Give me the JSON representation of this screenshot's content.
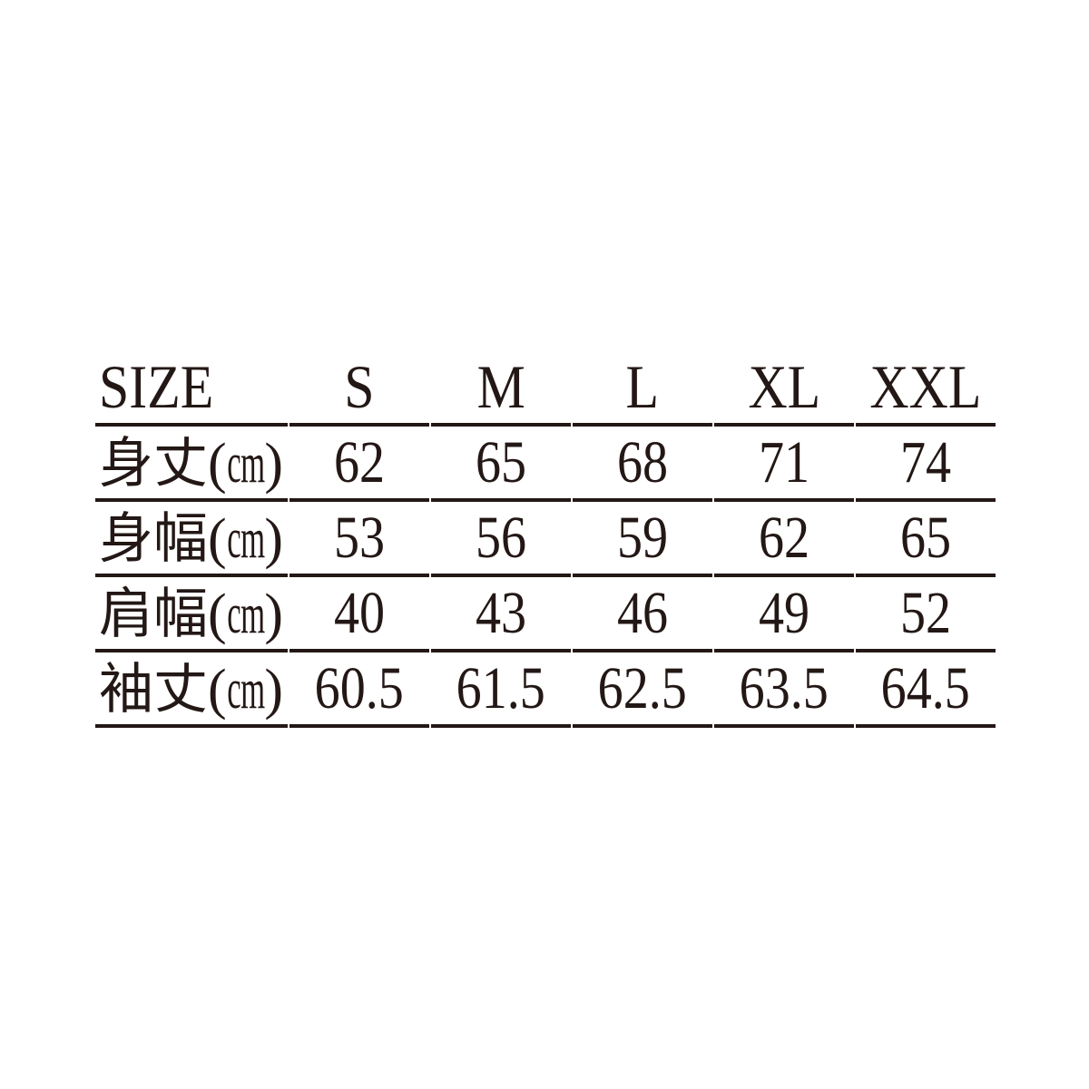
{
  "page": {
    "background_color": "#ffffff",
    "text_color": "#231815",
    "rule_color": "#231815"
  },
  "chart_data": {
    "type": "table",
    "title": "",
    "columns": [
      "SIZE",
      "S",
      "M",
      "L",
      "XL",
      "XXL"
    ],
    "unit_paren_open": "(",
    "unit_paren_close": ")",
    "rows": [
      {
        "label": "身丈",
        "unit": "cm",
        "values": [
          62,
          65,
          68,
          71,
          74
        ]
      },
      {
        "label": "身幅",
        "unit": "cm",
        "values": [
          53,
          56,
          59,
          62,
          65
        ]
      },
      {
        "label": "肩幅",
        "unit": "cm",
        "values": [
          40,
          43,
          46,
          49,
          52
        ]
      },
      {
        "label": "袖丈",
        "unit": "cm",
        "values": [
          60.5,
          61.5,
          62.5,
          63.5,
          64.5
        ]
      }
    ],
    "layout": {
      "grid": "horizontal-rules-only",
      "header_position": "top",
      "label_column_alignment": "left",
      "value_alignment": "center"
    }
  }
}
